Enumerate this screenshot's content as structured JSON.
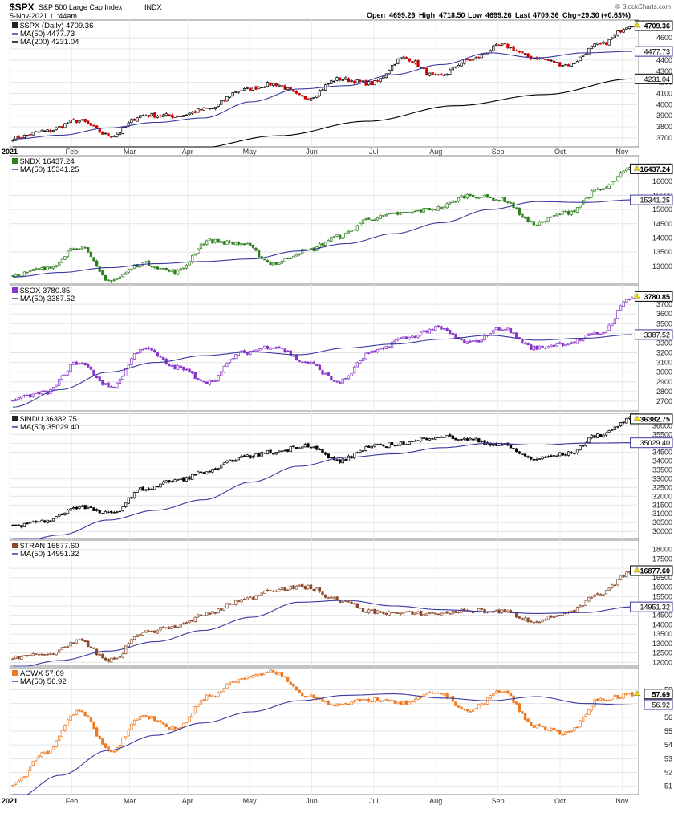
{
  "header": {
    "symbol": "$SPX",
    "name": "S&P 500 Large Cap Index",
    "exchange": "INDX",
    "date": "5-Nov-2021 11:44am",
    "open_label": "Open",
    "open": "4699.26",
    "high_label": "High",
    "high": "4718.50",
    "low_label": "Low",
    "low": "4699.26",
    "last_label": "Last",
    "last": "4709.36",
    "chg_label": "Chg",
    "chg": "+29.30 (+0.63%)",
    "watermark": "© StockCharts.com"
  },
  "x_axis": {
    "labels": [
      "2021",
      "Feb",
      "Mar",
      "Apr",
      "May",
      "Jun",
      "Jul",
      "Aug",
      "Sep",
      "Oct",
      "Nov"
    ],
    "positions": [
      0,
      0.15,
      0.29,
      0.43,
      0.58,
      0.73,
      0.88,
      1.03,
      1.18,
      1.33,
      1.48
    ]
  },
  "chart_data": [
    {
      "type": "candlestick",
      "legend": "$SPX (Daily) 4709.36",
      "ma": [
        {
          "label": "MA(50) 4477.73",
          "value": 4477.73,
          "color": "#3a3aa0",
          "tag": "4477.73"
        },
        {
          "label": "MA(200) 4231.04",
          "value": 4231.04,
          "color": "#000000",
          "tag": "4231.04"
        }
      ],
      "ylim": [
        3620,
        4760
      ],
      "yticks": [
        "3700",
        "3800",
        "3900",
        "4000",
        "4100",
        "4200",
        "4300",
        "4400",
        "4500",
        "4600"
      ],
      "last_tag": "4709.36",
      "up_color": "#000000",
      "down_color": "#cc0000",
      "anchors": [
        3700,
        3760,
        3855,
        3720,
        3905,
        3900,
        3960,
        4130,
        4185,
        4060,
        4230,
        4190,
        4420,
        4250,
        4400,
        4530,
        4420,
        4358,
        4540,
        4720
      ],
      "ma50_anchors": [
        3690,
        3725,
        3790,
        3840,
        3880,
        4025,
        4140,
        4170,
        4270,
        4360,
        4465,
        4420,
        4465,
        4478
      ],
      "ma200_anchors": [
        3425,
        3500,
        3600,
        3720,
        3850,
        3990,
        4090,
        4231
      ]
    },
    {
      "type": "candlestick",
      "legend": "$NDX 16437.24",
      "ma": [
        {
          "label": "MA(50) 15341.25",
          "value": 15341.25,
          "color": "#3a3aa0",
          "tag": "15341.25"
        }
      ],
      "ylim": [
        12400,
        16900
      ],
      "yticks": [
        "13000",
        "13500",
        "14000",
        "14500",
        "15000",
        "15500",
        "16000"
      ],
      "last_tag": "16437.24",
      "up_color": "#2e7d1e",
      "down_color": "#2e7d1e",
      "anchors": [
        12700,
        12900,
        13700,
        12500,
        13100,
        12800,
        13900,
        13800,
        13100,
        13550,
        14050,
        14700,
        14870,
        15050,
        15500,
        15350,
        14500,
        14900,
        15700,
        16450
      ],
      "ma50_anchors": [
        12620,
        12780,
        12950,
        13090,
        13170,
        13260,
        13540,
        13800,
        14150,
        14540,
        15000,
        15280,
        15250,
        15341
      ]
    },
    {
      "type": "candlestick",
      "legend": "$SOX 3780.85",
      "ma": [
        {
          "label": "MA(50) 3387.52",
          "value": 3387.52,
          "color": "#3a3aa0",
          "tag": "3387.52"
        }
      ],
      "ylim": [
        2600,
        3900
      ],
      "yticks": [
        "2700",
        "2800",
        "2900",
        "3000",
        "3100",
        "3200",
        "3300",
        "3400",
        "3500",
        "3600",
        "3700"
      ],
      "last_tag": "3780.85",
      "up_color": "#8833cc",
      "down_color": "#8833cc",
      "anchors": [
        2720,
        2790,
        3100,
        2850,
        3250,
        3050,
        2900,
        3200,
        3270,
        3100,
        2900,
        3200,
        3350,
        3450,
        3300,
        3450,
        3250,
        3300,
        3400,
        3780
      ],
      "ma50_anchors": [
        2640,
        2820,
        3000,
        3100,
        3170,
        3210,
        3180,
        3250,
        3290,
        3340,
        3380,
        3330,
        3350,
        3387
      ]
    },
    {
      "type": "candlestick",
      "legend": "$INDU 36382.75",
      "ma": [
        {
          "label": "MA(50) 35029.40",
          "value": 35029.4,
          "color": "#3a3aa0",
          "tag": "35029.40"
        }
      ],
      "ylim": [
        29600,
        36700
      ],
      "yticks": [
        "30000",
        "30500",
        "31000",
        "31500",
        "32000",
        "32500",
        "33000",
        "33500",
        "34000",
        "34500",
        "35000",
        "35500",
        "36000"
      ],
      "last_tag": "36382.75",
      "up_color": "#000000",
      "down_color": "#000000",
      "anchors": [
        30300,
        30600,
        31400,
        31000,
        32400,
        32900,
        33400,
        34200,
        34500,
        34900,
        34000,
        34800,
        35000,
        35400,
        35200,
        34900,
        34100,
        34400,
        35500,
        36380
      ],
      "ma50_anchors": [
        29300,
        29800,
        30650,
        31200,
        31800,
        32800,
        33700,
        34200,
        34400,
        34750,
        35000,
        34900,
        35010,
        35029
      ]
    },
    {
      "type": "candlestick",
      "legend": "$TRAN 16877.60",
      "ma": [
        {
          "label": "MA(50) 14951.32",
          "value": 14951.32,
          "color": "#3a3aa0",
          "tag": "14951.32"
        }
      ],
      "ylim": [
        11800,
        18500
      ],
      "yticks": [
        "12000",
        "12500",
        "13000",
        "13500",
        "14000",
        "14500",
        "15000",
        "15500",
        "16000",
        "16500",
        "17000",
        "17500",
        "18000"
      ],
      "last_tag": "16877.60",
      "up_color": "#8b4a2b",
      "down_color": "#8b4a2b",
      "anchors": [
        12300,
        12400,
        13100,
        12100,
        13600,
        13900,
        14600,
        15300,
        15900,
        16000,
        15300,
        14700,
        14600,
        14600,
        14750,
        14700,
        14200,
        14600,
        15600,
        16880
      ],
      "ma50_anchors": [
        11700,
        12100,
        12600,
        13100,
        13700,
        14400,
        15200,
        15300,
        15000,
        14800,
        14700,
        14600,
        14650,
        14951
      ]
    },
    {
      "type": "candlestick",
      "legend": "ACWX 57.69",
      "ma": [
        {
          "label": "MA(50) 56.92",
          "value": 56.92,
          "color": "#3a3aa0",
          "tag": "56.92"
        }
      ],
      "ylim": [
        50.4,
        59.6
      ],
      "yticks": [
        "51",
        "52",
        "53",
        "54",
        "55",
        "56",
        "57",
        "58"
      ],
      "last_tag": "57.69",
      "up_color": "#f07820",
      "down_color": "#f07820",
      "anchors": [
        51.2,
        53.5,
        56.5,
        53.6,
        56.1,
        55.2,
        57.5,
        58.8,
        59.3,
        57.6,
        56.9,
        57.3,
        57.0,
        57.8,
        56.5,
        57.9,
        55.4,
        54.8,
        57.3,
        57.7
      ],
      "ma50_anchors": [
        50.0,
        51.8,
        53.6,
        54.7,
        55.6,
        56.4,
        57.2,
        57.6,
        57.7,
        57.4,
        57.2,
        57.5,
        57.0,
        56.9
      ]
    }
  ]
}
